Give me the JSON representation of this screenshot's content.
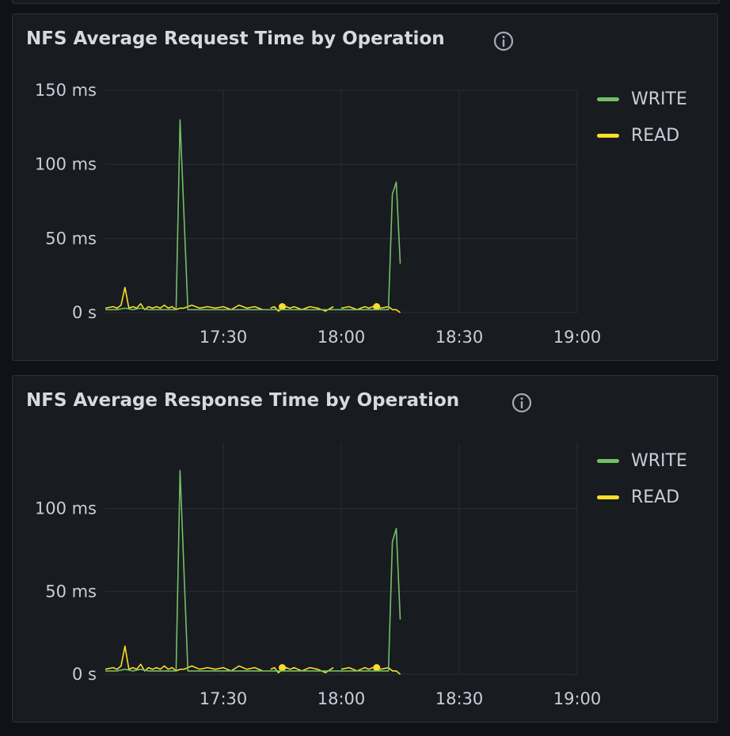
{
  "panels": [
    {
      "title": "NFS Average Request Time by Operation",
      "info_icon": "info-circle-icon",
      "legend": [
        {
          "label": "WRITE",
          "color": "#73bf69"
        },
        {
          "label": "READ",
          "color": "#fade2a"
        }
      ]
    },
    {
      "title": "NFS Average Response Time by Operation",
      "info_icon": "info-circle-icon",
      "legend": [
        {
          "label": "WRITE",
          "color": "#73bf69"
        },
        {
          "label": "READ",
          "color": "#fade2a"
        }
      ]
    }
  ],
  "chart_data": [
    {
      "type": "line",
      "title": "NFS Average Request Time by Operation",
      "x_unit": "time",
      "y_unit": "ms",
      "xlim": [
        "17:00",
        "19:00"
      ],
      "ylim": [
        0,
        150
      ],
      "x_ticks": [
        "17:30",
        "18:00",
        "18:30",
        "19:00"
      ],
      "y_ticks": [
        {
          "value": 0,
          "label": "0 s"
        },
        {
          "value": 50,
          "label": "50 ms"
        },
        {
          "value": 100,
          "label": "100 ms"
        },
        {
          "value": 150,
          "label": "150 ms"
        }
      ],
      "grid": true,
      "legend_position": "right",
      "series": [
        {
          "name": "WRITE",
          "color": "#73bf69",
          "points": [
            [
              "17:00",
              2
            ],
            [
              "17:03",
              2
            ],
            [
              "17:05",
              3
            ],
            [
              "17:07",
              2
            ],
            [
              "17:09",
              3
            ],
            [
              "17:11",
              2
            ],
            [
              "17:13",
              2
            ],
            [
              "17:15",
              2
            ],
            [
              "17:17",
              2
            ],
            [
              "17:18",
              2
            ],
            [
              "17:19",
              130
            ],
            [
              "17:21",
              2
            ],
            [
              "17:24",
              2
            ],
            [
              "17:27",
              2
            ],
            [
              "17:30",
              2
            ],
            [
              "17:33",
              2
            ],
            [
              "17:36",
              2
            ],
            [
              "17:39",
              2
            ],
            [
              "17:42",
              2
            ],
            [
              "17:45",
              2
            ],
            [
              "17:48",
              2
            ],
            [
              "17:51",
              2
            ],
            [
              "17:54",
              2
            ],
            [
              "17:57",
              2
            ],
            [
              "18:00",
              2
            ],
            [
              "18:03",
              2
            ],
            [
              "18:06",
              2
            ],
            [
              "18:09",
              2
            ],
            [
              "18:12",
              2
            ],
            [
              "18:13",
              80
            ],
            [
              "18:14",
              88
            ],
            [
              "18:15",
              33
            ]
          ]
        },
        {
          "name": "READ",
          "color": "#fade2a",
          "segments": [
            [
              [
                "17:00",
                3
              ],
              [
                "17:02",
                4
              ],
              [
                "17:03",
                3
              ],
              [
                "17:04",
                5
              ],
              [
                "17:05",
                17
              ],
              [
                "17:06",
                3
              ],
              [
                "17:07",
                4
              ],
              [
                "17:08",
                3
              ],
              [
                "17:09",
                6
              ],
              [
                "17:10",
                2
              ],
              [
                "17:11",
                4
              ],
              [
                "17:12",
                3
              ],
              [
                "17:13",
                4
              ],
              [
                "17:14",
                3
              ],
              [
                "17:15",
                5
              ],
              [
                "17:16",
                3
              ],
              [
                "17:17",
                4
              ],
              [
                "17:18",
                2
              ],
              [
                "17:19",
                3
              ],
              [
                "17:20",
                3
              ],
              [
                "17:22",
                5
              ],
              [
                "17:24",
                3
              ],
              [
                "17:26",
                4
              ],
              [
                "17:28",
                3
              ],
              [
                "17:30",
                4
              ],
              [
                "17:32",
                2
              ],
              [
                "17:34",
                5
              ],
              [
                "17:36",
                3
              ],
              [
                "17:38",
                4
              ],
              [
                "17:40",
                2
              ]
            ],
            [
              [
                "17:42",
                3
              ],
              [
                "17:43",
                4
              ],
              [
                "17:44",
                1
              ],
              [
                "17:46",
                4
              ],
              [
                "17:47",
                3
              ],
              [
                "17:48",
                4
              ],
              [
                "17:50",
                2
              ],
              [
                "17:52",
                4
              ],
              [
                "17:54",
                3
              ],
              [
                "17:56",
                1
              ],
              [
                "17:58",
                4
              ]
            ],
            [
              [
                "18:00",
                3
              ],
              [
                "18:02",
                4
              ],
              [
                "18:04",
                2
              ],
              [
                "18:06",
                4
              ],
              [
                "18:07",
                3
              ],
              [
                "18:08",
                4
              ],
              [
                "18:10",
                3
              ],
              [
                "18:12",
                4
              ],
              [
                "18:13",
                2
              ],
              [
                "18:14",
                2
              ],
              [
                "18:15",
                0
              ]
            ]
          ],
          "isolated_points": [
            [
              "17:45",
              4
            ],
            [
              "18:09",
              4
            ]
          ]
        }
      ]
    },
    {
      "type": "line",
      "title": "NFS Average Response Time by Operation",
      "x_unit": "time",
      "y_unit": "ms",
      "xlim": [
        "17:00",
        "19:00"
      ],
      "ylim": [
        0,
        140
      ],
      "x_ticks": [
        "17:30",
        "18:00",
        "18:30",
        "19:00"
      ],
      "y_ticks": [
        {
          "value": 0,
          "label": "0 s"
        },
        {
          "value": 50,
          "label": "50 ms"
        },
        {
          "value": 100,
          "label": "100 ms"
        }
      ],
      "grid": true,
      "legend_position": "right",
      "series": [
        {
          "name": "WRITE",
          "color": "#73bf69",
          "points": [
            [
              "17:00",
              2
            ],
            [
              "17:03",
              2
            ],
            [
              "17:05",
              3
            ],
            [
              "17:07",
              2
            ],
            [
              "17:09",
              3
            ],
            [
              "17:11",
              2
            ],
            [
              "17:13",
              2
            ],
            [
              "17:15",
              2
            ],
            [
              "17:17",
              2
            ],
            [
              "17:18",
              2
            ],
            [
              "17:19",
              123
            ],
            [
              "17:21",
              2
            ],
            [
              "17:24",
              2
            ],
            [
              "17:27",
              2
            ],
            [
              "17:30",
              2
            ],
            [
              "17:33",
              2
            ],
            [
              "17:36",
              2
            ],
            [
              "17:39",
              2
            ],
            [
              "17:42",
              2
            ],
            [
              "17:45",
              2
            ],
            [
              "17:48",
              2
            ],
            [
              "17:51",
              2
            ],
            [
              "17:54",
              2
            ],
            [
              "17:57",
              2
            ],
            [
              "18:00",
              2
            ],
            [
              "18:03",
              2
            ],
            [
              "18:06",
              2
            ],
            [
              "18:09",
              2
            ],
            [
              "18:12",
              2
            ],
            [
              "18:13",
              80
            ],
            [
              "18:14",
              88
            ],
            [
              "18:15",
              33
            ]
          ]
        },
        {
          "name": "READ",
          "color": "#fade2a",
          "segments": [
            [
              [
                "17:00",
                3
              ],
              [
                "17:02",
                4
              ],
              [
                "17:03",
                3
              ],
              [
                "17:04",
                5
              ],
              [
                "17:05",
                17
              ],
              [
                "17:06",
                3
              ],
              [
                "17:07",
                4
              ],
              [
                "17:08",
                3
              ],
              [
                "17:09",
                6
              ],
              [
                "17:10",
                2
              ],
              [
                "17:11",
                4
              ],
              [
                "17:12",
                3
              ],
              [
                "17:13",
                4
              ],
              [
                "17:14",
                3
              ],
              [
                "17:15",
                5
              ],
              [
                "17:16",
                3
              ],
              [
                "17:17",
                4
              ],
              [
                "17:18",
                2
              ],
              [
                "17:19",
                3
              ],
              [
                "17:20",
                3
              ],
              [
                "17:22",
                5
              ],
              [
                "17:24",
                3
              ],
              [
                "17:26",
                4
              ],
              [
                "17:28",
                3
              ],
              [
                "17:30",
                4
              ],
              [
                "17:32",
                2
              ],
              [
                "17:34",
                5
              ],
              [
                "17:36",
                3
              ],
              [
                "17:38",
                4
              ],
              [
                "17:40",
                2
              ]
            ],
            [
              [
                "17:42",
                3
              ],
              [
                "17:43",
                4
              ],
              [
                "17:44",
                1
              ],
              [
                "17:46",
                4
              ],
              [
                "17:47",
                3
              ],
              [
                "17:48",
                4
              ],
              [
                "17:50",
                2
              ],
              [
                "17:52",
                4
              ],
              [
                "17:54",
                3
              ],
              [
                "17:56",
                1
              ],
              [
                "17:58",
                4
              ]
            ],
            [
              [
                "18:00",
                3
              ],
              [
                "18:02",
                4
              ],
              [
                "18:04",
                2
              ],
              [
                "18:06",
                4
              ],
              [
                "18:07",
                3
              ],
              [
                "18:08",
                4
              ],
              [
                "18:10",
                3
              ],
              [
                "18:12",
                4
              ],
              [
                "18:13",
                2
              ],
              [
                "18:14",
                2
              ],
              [
                "18:15",
                0
              ]
            ]
          ],
          "isolated_points": [
            [
              "17:45",
              4
            ],
            [
              "18:09",
              4
            ]
          ]
        }
      ]
    }
  ]
}
